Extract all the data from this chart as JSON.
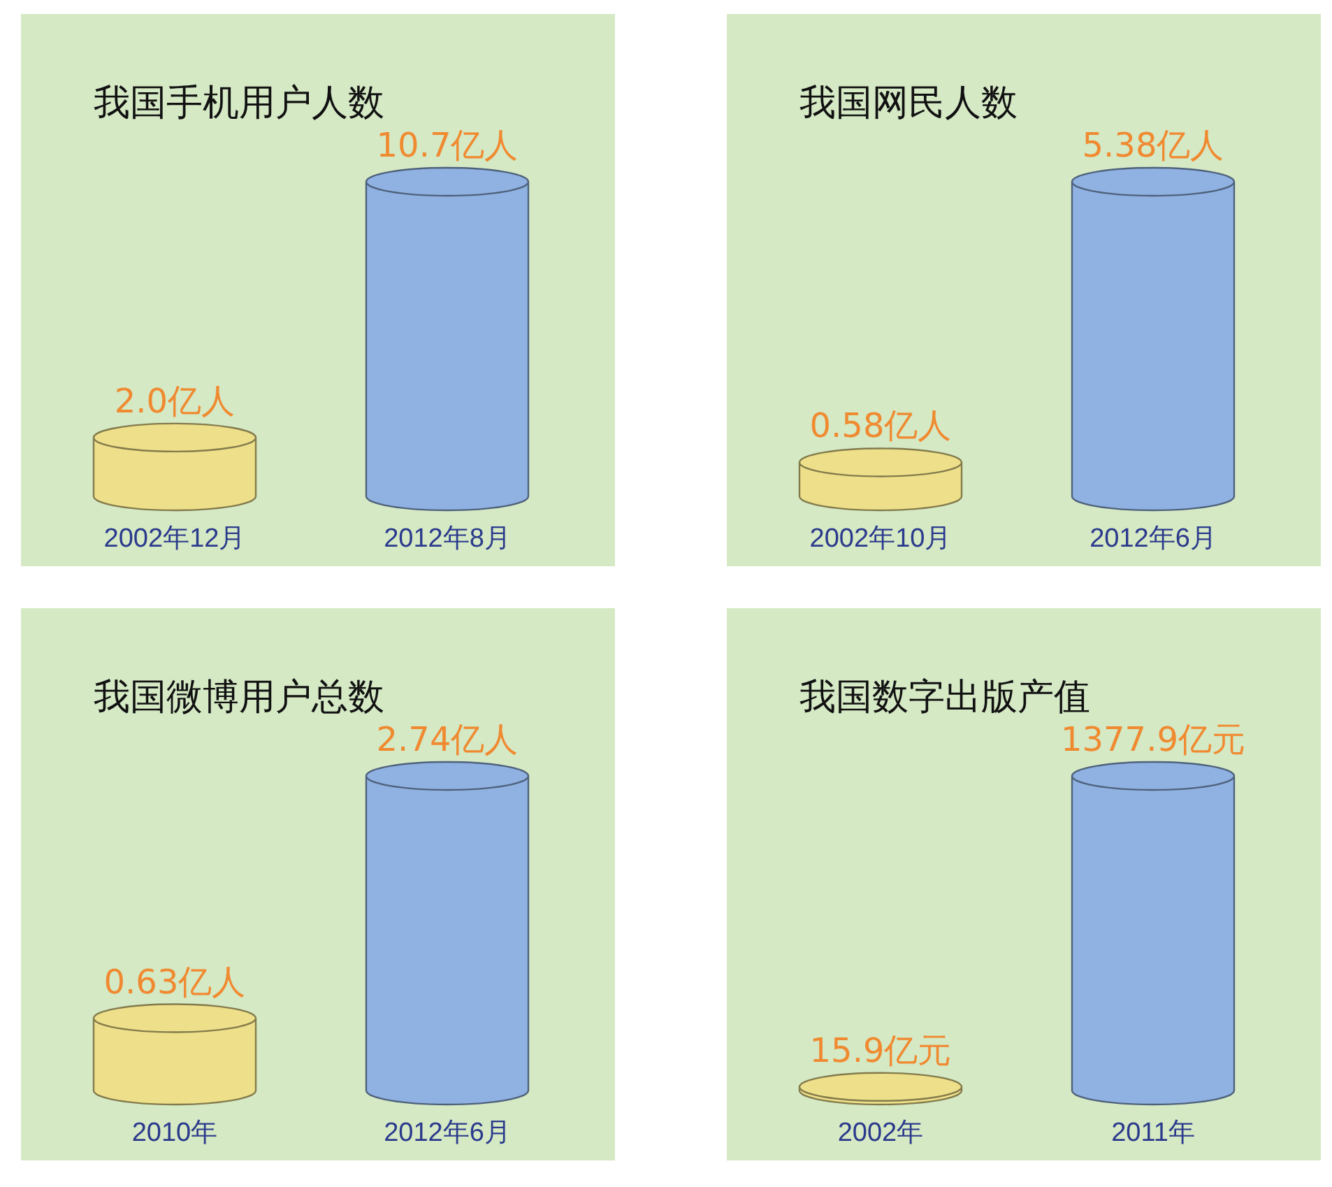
{
  "chart_data": [
    {
      "type": "bar",
      "title": "我国手机用户人数",
      "categories": [
        "2002年12月",
        "2012年8月"
      ],
      "values": [
        2.0,
        10.7
      ],
      "colors": [
        "#eee08a",
        "#8fb2e2"
      ],
      "value_labels": [
        "2.0亿人",
        "10.7亿人"
      ]
    },
    {
      "type": "bar",
      "title": "我国网民人数",
      "categories": [
        "2002年10月",
        "2012年6月"
      ],
      "values": [
        0.58,
        5.38
      ],
      "colors": [
        "#eee08a",
        "#8fb2e2"
      ],
      "value_labels": [
        "0.58亿人",
        "5.38亿人"
      ]
    },
    {
      "type": "bar",
      "title": "我国微博用户总数",
      "categories": [
        "2010年",
        "2012年6月"
      ],
      "values": [
        0.63,
        2.74
      ],
      "colors": [
        "#eee08a",
        "#8fb2e2"
      ],
      "value_labels": [
        "0.63亿人",
        "2.74亿人"
      ]
    },
    {
      "type": "bar",
      "title": "我国数字出版产值",
      "categories": [
        "2002年",
        "2011年"
      ],
      "values": [
        15.9,
        1377.9
      ],
      "colors": [
        "#eee08a",
        "#8fb2e2"
      ],
      "value_labels": [
        "15.9亿元",
        "1377.9亿元"
      ]
    }
  ]
}
